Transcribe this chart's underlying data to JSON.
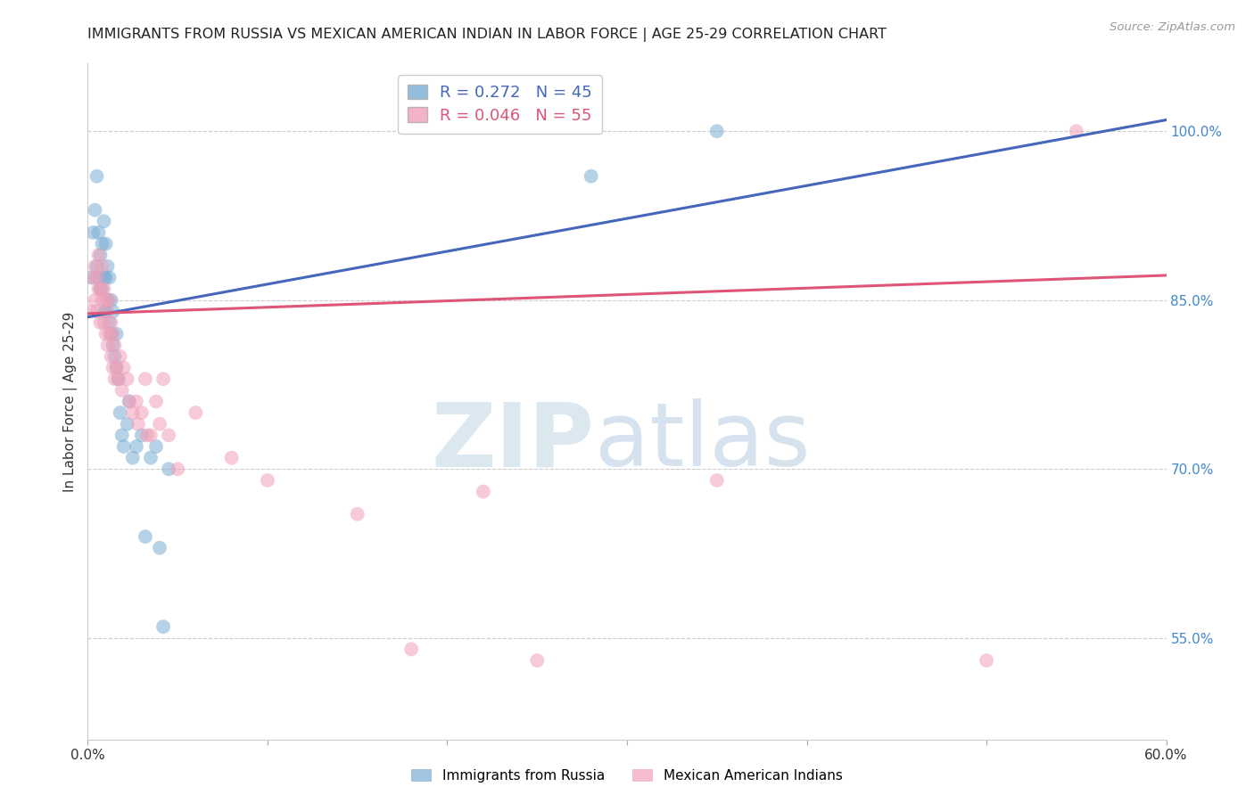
{
  "title": "IMMIGRANTS FROM RUSSIA VS MEXICAN AMERICAN INDIAN IN LABOR FORCE | AGE 25-29 CORRELATION CHART",
  "source": "Source: ZipAtlas.com",
  "ylabel": "In Labor Force | Age 25-29",
  "xlim": [
    0.0,
    0.6
  ],
  "ylim": [
    0.46,
    1.06
  ],
  "xtick_vals": [
    0.0,
    0.1,
    0.2,
    0.3,
    0.4,
    0.5,
    0.6
  ],
  "xticklabels": [
    "0.0%",
    "",
    "",
    "",
    "",
    "",
    "60.0%"
  ],
  "ytick_vals": [
    0.55,
    0.7,
    0.85,
    1.0
  ],
  "yticklabels": [
    "55.0%",
    "70.0%",
    "85.0%",
    "100.0%"
  ],
  "grid_color": "#cccccc",
  "background_color": "#ffffff",
  "legend_R_blue": "0.272",
  "legend_N_blue": "45",
  "legend_R_pink": "0.046",
  "legend_N_pink": "55",
  "blue_color": "#7aadd4",
  "pink_color": "#f0a0b8",
  "blue_line_color": "#4466bb",
  "pink_line_color": "#dd5577",
  "right_axis_color": "#4488cc",
  "blue_line_x": [
    0.0,
    0.6
  ],
  "blue_line_y": [
    0.835,
    1.01
  ],
  "pink_line_x": [
    0.0,
    0.6
  ],
  "pink_line_y": [
    0.838,
    0.872
  ],
  "blue_x": [
    0.002,
    0.003,
    0.004,
    0.005,
    0.005,
    0.006,
    0.006,
    0.007,
    0.007,
    0.008,
    0.008,
    0.009,
    0.009,
    0.009,
    0.01,
    0.01,
    0.01,
    0.011,
    0.011,
    0.012,
    0.012,
    0.013,
    0.013,
    0.014,
    0.014,
    0.015,
    0.016,
    0.016,
    0.017,
    0.018,
    0.019,
    0.02,
    0.022,
    0.023,
    0.025,
    0.027,
    0.03,
    0.032,
    0.035,
    0.038,
    0.04,
    0.042,
    0.045,
    0.28,
    0.35
  ],
  "blue_y": [
    0.87,
    0.91,
    0.93,
    0.88,
    0.96,
    0.87,
    0.91,
    0.86,
    0.89,
    0.86,
    0.9,
    0.84,
    0.87,
    0.92,
    0.84,
    0.87,
    0.9,
    0.85,
    0.88,
    0.83,
    0.87,
    0.82,
    0.85,
    0.81,
    0.84,
    0.8,
    0.79,
    0.82,
    0.78,
    0.75,
    0.73,
    0.72,
    0.74,
    0.76,
    0.71,
    0.72,
    0.73,
    0.64,
    0.71,
    0.72,
    0.63,
    0.56,
    0.7,
    0.96,
    1.0
  ],
  "pink_x": [
    0.002,
    0.003,
    0.004,
    0.004,
    0.005,
    0.005,
    0.006,
    0.006,
    0.007,
    0.007,
    0.008,
    0.008,
    0.009,
    0.009,
    0.01,
    0.01,
    0.011,
    0.011,
    0.012,
    0.012,
    0.013,
    0.013,
    0.014,
    0.014,
    0.015,
    0.015,
    0.016,
    0.017,
    0.018,
    0.019,
    0.02,
    0.022,
    0.023,
    0.025,
    0.027,
    0.028,
    0.03,
    0.032,
    0.033,
    0.035,
    0.038,
    0.04,
    0.042,
    0.045,
    0.05,
    0.06,
    0.08,
    0.1,
    0.15,
    0.18,
    0.22,
    0.25,
    0.35,
    0.5,
    0.55
  ],
  "pink_y": [
    0.84,
    0.87,
    0.85,
    0.88,
    0.84,
    0.87,
    0.86,
    0.89,
    0.83,
    0.86,
    0.85,
    0.88,
    0.83,
    0.86,
    0.82,
    0.85,
    0.81,
    0.84,
    0.82,
    0.85,
    0.8,
    0.83,
    0.79,
    0.82,
    0.78,
    0.81,
    0.79,
    0.78,
    0.8,
    0.77,
    0.79,
    0.78,
    0.76,
    0.75,
    0.76,
    0.74,
    0.75,
    0.78,
    0.73,
    0.73,
    0.76,
    0.74,
    0.78,
    0.73,
    0.7,
    0.75,
    0.71,
    0.69,
    0.66,
    0.54,
    0.68,
    0.53,
    0.69,
    0.53,
    1.0
  ]
}
